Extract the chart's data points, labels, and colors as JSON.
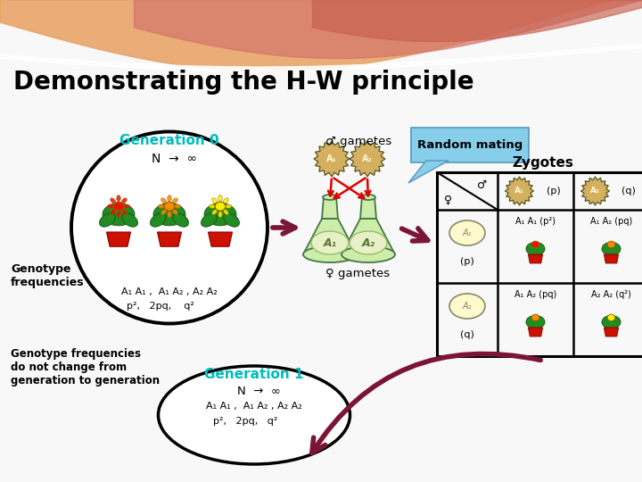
{
  "title": "Demonstrating the H-W principle",
  "title_fontsize": 20,
  "bg_color": "#f8f8f8",
  "gen0_label": "Generation 0",
  "gen0_color": "#00BBBB",
  "gen1_label": "Generation 1",
  "gen1_color": "#00BBBB",
  "arrow_color": "#7B1535",
  "random_mating_label": "Random mating",
  "random_mating_bg": "#87CEEB",
  "zygotes_label": "Zygotes",
  "gf_note": "Genotype frequencies\ndo not change from\ngeneration to generation",
  "wave1_color": "#E8A060",
  "wave2_color": "#D4756A",
  "wave3_color": "#C86050"
}
